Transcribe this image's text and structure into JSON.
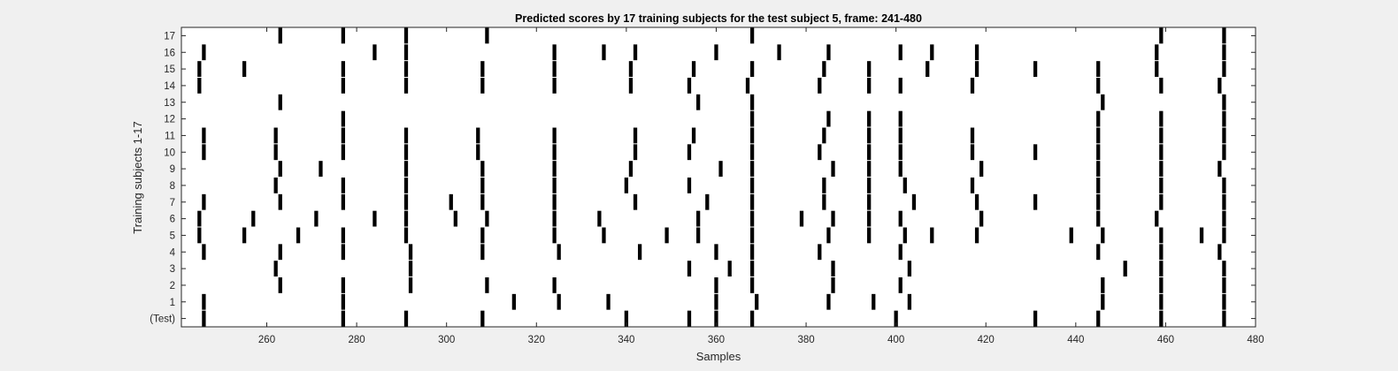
{
  "chart_data": {
    "type": "heatmap",
    "title": "Predicted scores by 17 training subjects for the test subject 5, frame: 241-480",
    "xlabel": "Samples",
    "ylabel": "Training subjects 1-17",
    "xlim": [
      241,
      480
    ],
    "xticks": [
      260,
      280,
      300,
      320,
      340,
      360,
      380,
      400,
      420,
      440,
      460,
      480
    ],
    "ytick_labels": [
      "(Test)",
      "1",
      "2",
      "3",
      "4",
      "5",
      "6",
      "7",
      "8",
      "9",
      "10",
      "11",
      "12",
      "13",
      "14",
      "15",
      "16",
      "17"
    ],
    "grid": false,
    "mark_color": "#000000",
    "background_color": "#ffffff",
    "rows": [
      {
        "label": "(Test)",
        "samples": [
          246,
          277,
          291,
          308,
          340,
          354,
          360,
          368,
          400,
          431,
          445,
          459,
          473
        ]
      },
      {
        "label": "1",
        "samples": [
          246,
          277,
          315,
          325,
          336,
          360,
          369,
          385,
          395,
          403,
          446,
          459,
          473
        ]
      },
      {
        "label": "2",
        "samples": [
          263,
          277,
          292,
          309,
          324,
          360,
          368,
          386,
          401,
          446,
          459,
          473
        ]
      },
      {
        "label": "3",
        "samples": [
          262,
          292,
          354,
          363,
          368,
          386,
          403,
          451,
          459,
          473
        ]
      },
      {
        "label": "4",
        "samples": [
          246,
          263,
          277,
          292,
          308,
          325,
          343,
          360,
          368,
          383,
          401,
          445,
          459,
          472
        ]
      },
      {
        "label": "5",
        "samples": [
          245,
          255,
          267,
          277,
          291,
          308,
          324,
          335,
          349,
          356,
          368,
          385,
          394,
          402,
          408,
          418,
          439,
          446,
          459,
          468,
          473
        ]
      },
      {
        "label": "6",
        "samples": [
          245,
          257,
          271,
          284,
          291,
          302,
          309,
          324,
          334,
          356,
          368,
          379,
          386,
          394,
          401,
          419,
          445,
          458,
          473
        ]
      },
      {
        "label": "7",
        "samples": [
          246,
          263,
          277,
          291,
          301,
          308,
          324,
          342,
          358,
          368,
          384,
          394,
          404,
          418,
          431,
          445,
          459,
          473
        ]
      },
      {
        "label": "8",
        "samples": [
          262,
          277,
          291,
          308,
          324,
          340,
          354,
          368,
          384,
          394,
          402,
          417,
          445,
          459,
          473
        ]
      },
      {
        "label": "9",
        "samples": [
          263,
          272,
          291,
          308,
          324,
          341,
          361,
          368,
          386,
          394,
          401,
          419,
          445,
          459,
          472
        ]
      },
      {
        "label": "10",
        "samples": [
          246,
          262,
          277,
          291,
          307,
          324,
          342,
          354,
          368,
          383,
          394,
          401,
          417,
          431,
          445,
          459,
          473
        ]
      },
      {
        "label": "11",
        "samples": [
          246,
          262,
          277,
          291,
          307,
          324,
          342,
          355,
          368,
          384,
          394,
          401,
          417,
          445,
          459,
          473
        ]
      },
      {
        "label": "12",
        "samples": [
          277,
          368,
          385,
          394,
          401,
          445,
          459,
          473
        ]
      },
      {
        "label": "13",
        "samples": [
          263,
          356,
          368,
          446,
          473
        ]
      },
      {
        "label": "14",
        "samples": [
          245,
          277,
          291,
          308,
          324,
          341,
          354,
          367,
          383,
          394,
          401,
          417,
          445,
          459,
          472
        ]
      },
      {
        "label": "15",
        "samples": [
          245,
          255,
          277,
          291,
          308,
          324,
          341,
          355,
          368,
          384,
          394,
          407,
          418,
          431,
          445,
          458,
          473
        ]
      },
      {
        "label": "16",
        "samples": [
          246,
          284,
          291,
          324,
          335,
          342,
          360,
          374,
          385,
          401,
          408,
          418,
          458,
          473
        ]
      },
      {
        "label": "17",
        "samples": [
          263,
          277,
          291,
          309,
          368,
          459,
          473
        ]
      }
    ]
  }
}
